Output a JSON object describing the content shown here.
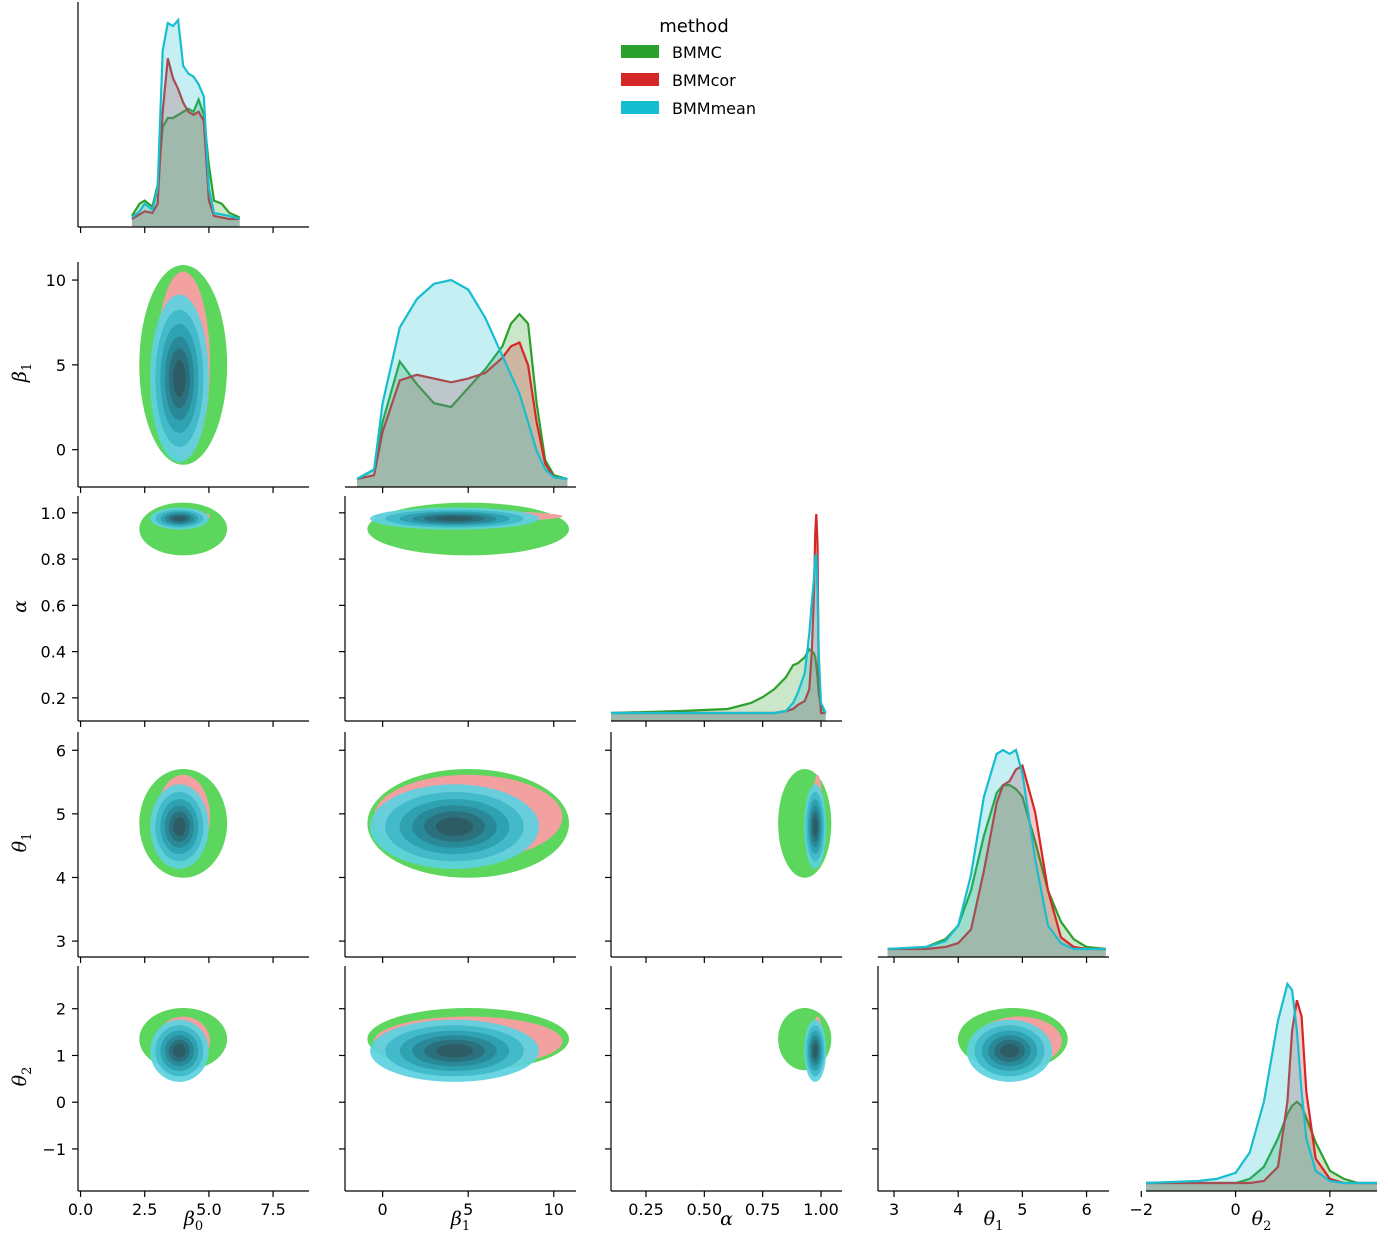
{
  "chart_data": {
    "type": "pairplot",
    "kind_lower": "kde-contour",
    "kind_diag": "kde",
    "legend": {
      "title": "method",
      "entries": [
        {
          "name": "BMMC",
          "color": "#2ca02c",
          "fill": "#5cd65c"
        },
        {
          "name": "BMMcor",
          "color": "#d62728",
          "fill": "#f2a0a0"
        },
        {
          "name": "BMMmean",
          "color": "#17becf",
          "fill": "#5dd1e0"
        }
      ]
    },
    "variables": [
      {
        "key": "beta0",
        "base": "β",
        "sub": "0",
        "range": [
          -0.1,
          8.9
        ],
        "ticks": [
          0,
          2.5,
          5,
          7.5
        ],
        "tick_labels": [
          "0.0",
          "2.5",
          "5.0",
          "7.5"
        ]
      },
      {
        "key": "beta1",
        "base": "β",
        "sub": "1",
        "range": [
          -2.2,
          11.3
        ],
        "ticks": [
          0,
          5,
          10
        ],
        "tick_labels": [
          "0",
          "5",
          "10"
        ]
      },
      {
        "key": "alpha",
        "base": "α",
        "sub": "",
        "range": [
          0.1,
          1.09
        ],
        "ticks": [
          0.25,
          0.5,
          0.75,
          1.0
        ],
        "tick_labels": [
          "0.25",
          "0.50",
          "0.75",
          "1.00"
        ],
        "yticks": [
          0.2,
          0.4,
          0.6,
          0.8,
          1.0
        ],
        "ytick_labels": [
          "0.2",
          "0.4",
          "0.6",
          "0.8",
          "1.0"
        ]
      },
      {
        "key": "theta1",
        "base": "θ",
        "sub": "1",
        "range": [
          2.75,
          6.35
        ],
        "ticks": [
          3,
          4,
          5,
          6
        ],
        "tick_labels": [
          "3",
          "4",
          "5",
          "6"
        ]
      },
      {
        "key": "theta2",
        "base": "θ",
        "sub": "2",
        "range": [
          -1.9,
          3.0
        ],
        "ticks": [
          -2,
          0,
          2
        ],
        "tick_labels": [
          "−2",
          "0",
          "2"
        ],
        "yticks": [
          -1,
          0,
          1,
          2
        ],
        "ytick_labels": [
          "−1",
          "0",
          "1",
          "2"
        ]
      }
    ],
    "summary": {
      "BMMC": {
        "beta0": [
          4.0,
          0.9
        ],
        "beta1": [
          5.0,
          3.1
        ],
        "alpha": [
          0.93,
          0.06
        ],
        "theta1": [
          4.85,
          0.45
        ],
        "theta2": [
          1.35,
          0.35
        ]
      },
      "BMMcor": {
        "beta0": [
          4.0,
          0.55
        ],
        "beta1": [
          5.0,
          2.9
        ],
        "alpha": [
          0.985,
          0.012
        ],
        "theta1": [
          4.95,
          0.35
        ],
        "theta2": [
          1.3,
          0.28
        ]
      },
      "BMMmean": {
        "beta0": [
          3.85,
          0.6
        ],
        "beta1": [
          4.2,
          2.6
        ],
        "alpha": [
          0.975,
          0.025
        ],
        "theta1": [
          4.8,
          0.35
        ],
        "theta2": [
          1.1,
          0.35
        ]
      }
    },
    "diagonal_kde": {
      "beta0": {
        "x": [
          2.0,
          2.3,
          2.5,
          2.8,
          3.0,
          3.2,
          3.4,
          3.6,
          3.8,
          4.0,
          4.2,
          4.4,
          4.6,
          4.8,
          5.0,
          5.2,
          5.5,
          5.8,
          6.2
        ],
        "BMMC": [
          0.02,
          0.1,
          0.12,
          0.08,
          0.22,
          0.6,
          0.66,
          0.66,
          0.68,
          0.7,
          0.72,
          0.7,
          0.78,
          0.68,
          0.35,
          0.12,
          0.1,
          0.04,
          0.01
        ],
        "BMMcor": [
          0.0,
          0.03,
          0.05,
          0.04,
          0.1,
          0.7,
          1.05,
          0.92,
          0.85,
          0.76,
          0.7,
          0.68,
          0.7,
          0.64,
          0.12,
          0.02,
          0.01,
          0.0,
          0.0
        ],
        "BMMmean": [
          0.01,
          0.05,
          0.1,
          0.06,
          0.2,
          1.1,
          1.28,
          1.26,
          1.3,
          1.0,
          0.95,
          0.93,
          0.88,
          0.8,
          0.2,
          0.04,
          0.03,
          0.02,
          0.0
        ]
      },
      "beta1": {
        "x": [
          -1.5,
          -0.5,
          0.0,
          1.0,
          2.0,
          3.0,
          4.0,
          5.0,
          6.0,
          7.0,
          7.5,
          8.0,
          8.5,
          9.0,
          9.5,
          10.0,
          10.8
        ],
        "BMMC": [
          0.0,
          0.05,
          0.3,
          0.62,
          0.5,
          0.4,
          0.38,
          0.48,
          0.58,
          0.7,
          0.82,
          0.87,
          0.82,
          0.4,
          0.1,
          0.02,
          0.0
        ],
        "BMMcor": [
          0.0,
          0.02,
          0.25,
          0.52,
          0.55,
          0.53,
          0.51,
          0.53,
          0.56,
          0.64,
          0.7,
          0.72,
          0.6,
          0.3,
          0.08,
          0.01,
          0.0
        ],
        "BMMmean": [
          0.0,
          0.05,
          0.4,
          0.8,
          0.95,
          1.03,
          1.05,
          1.0,
          0.85,
          0.65,
          0.55,
          0.45,
          0.3,
          0.15,
          0.05,
          0.01,
          0.0
        ]
      },
      "alpha": {
        "x": [
          0.1,
          0.4,
          0.6,
          0.7,
          0.75,
          0.8,
          0.85,
          0.88,
          0.9,
          0.93,
          0.95,
          0.96,
          0.97,
          0.975,
          0.98,
          0.985,
          0.99,
          1.0,
          1.02
        ],
        "BMMC": [
          0.0,
          0.01,
          0.02,
          0.05,
          0.08,
          0.12,
          0.18,
          0.24,
          0.25,
          0.28,
          0.32,
          0.31,
          0.3,
          0.28,
          0.24,
          0.18,
          0.1,
          0.03,
          0.0
        ],
        "BMMcor": [
          0.0,
          0.0,
          0.0,
          0.0,
          0.0,
          0.0,
          0.01,
          0.02,
          0.04,
          0.06,
          0.12,
          0.3,
          0.6,
          0.9,
          1.0,
          0.85,
          0.2,
          0.0,
          0.0
        ],
        "BMMmean": [
          0.0,
          0.0,
          0.0,
          0.0,
          0.0,
          0.0,
          0.01,
          0.05,
          0.1,
          0.2,
          0.4,
          0.55,
          0.68,
          0.78,
          0.8,
          0.62,
          0.3,
          0.05,
          0.0
        ]
      },
      "theta1": {
        "x": [
          2.9,
          3.5,
          3.8,
          4.0,
          4.2,
          4.4,
          4.6,
          4.7,
          4.8,
          4.9,
          5.0,
          5.2,
          5.4,
          5.6,
          5.8,
          6.0,
          6.3
        ],
        "BMMC": [
          0.0,
          0.01,
          0.05,
          0.12,
          0.3,
          0.58,
          0.8,
          0.84,
          0.84,
          0.82,
          0.78,
          0.55,
          0.3,
          0.14,
          0.05,
          0.01,
          0.0
        ],
        "BMMcor": [
          0.0,
          0.0,
          0.01,
          0.03,
          0.1,
          0.4,
          0.75,
          0.84,
          0.86,
          0.92,
          0.94,
          0.7,
          0.3,
          0.06,
          0.01,
          0.0,
          0.0
        ],
        "BMMmean": [
          0.0,
          0.01,
          0.04,
          0.12,
          0.38,
          0.78,
          1.0,
          1.02,
          1.0,
          1.02,
          0.9,
          0.46,
          0.12,
          0.03,
          0.0,
          0.0,
          0.0
        ]
      },
      "theta2": {
        "x": [
          -1.9,
          -0.8,
          -0.4,
          0.0,
          0.3,
          0.6,
          0.9,
          1.1,
          1.2,
          1.3,
          1.4,
          1.5,
          1.7,
          2.0,
          2.3,
          2.6,
          3.0
        ],
        "BMMC": [
          0.0,
          0.0,
          0.0,
          0.0,
          0.02,
          0.08,
          0.22,
          0.34,
          0.38,
          0.4,
          0.38,
          0.32,
          0.2,
          0.06,
          0.02,
          0.0,
          0.0
        ],
        "BMMcor": [
          0.0,
          0.0,
          0.0,
          0.0,
          0.0,
          0.01,
          0.08,
          0.4,
          0.75,
          0.9,
          0.82,
          0.45,
          0.12,
          0.02,
          0.0,
          0.0,
          0.0
        ],
        "BMMmean": [
          0.0,
          0.01,
          0.02,
          0.05,
          0.15,
          0.4,
          0.8,
          0.98,
          0.95,
          0.75,
          0.45,
          0.22,
          0.06,
          0.01,
          0.0,
          0.0,
          0.0
        ]
      }
    }
  }
}
